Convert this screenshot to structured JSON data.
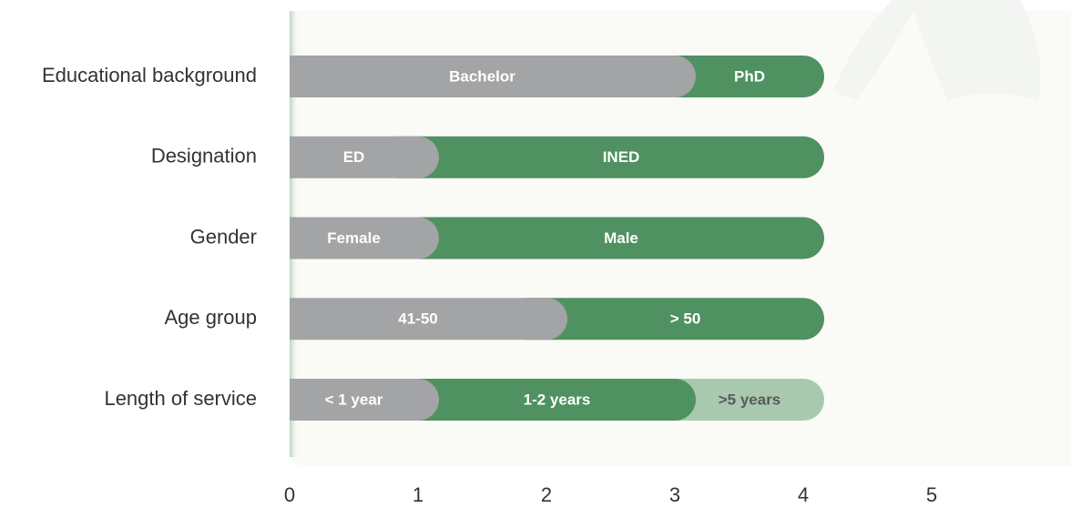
{
  "chart_data": {
    "type": "stacked-bar",
    "categories": [
      "Educational background",
      "Designation",
      "Gender",
      "Age group",
      "Length of service"
    ],
    "segments": [
      [
        {
          "label": "Bachelor",
          "value": 3,
          "color": "#a3a4a6",
          "label_color": "#ffffff"
        },
        {
          "label": "PhD",
          "value": 1,
          "color": "#4f9160",
          "label_color": "#ffffff"
        }
      ],
      [
        {
          "label": "ED",
          "value": 1,
          "color": "#a3a4a6",
          "label_color": "#ffffff"
        },
        {
          "label": "INED",
          "value": 3,
          "color": "#4f9160",
          "label_color": "#ffffff"
        }
      ],
      [
        {
          "label": "Female",
          "value": 1,
          "color": "#a3a4a6",
          "label_color": "#ffffff"
        },
        {
          "label": "Male",
          "value": 3,
          "color": "#4f9160",
          "label_color": "#ffffff"
        }
      ],
      [
        {
          "label": "41-50",
          "value": 2,
          "color": "#a3a4a6",
          "label_color": "#ffffff"
        },
        {
          "label": "> 50",
          "value": 2,
          "color": "#4f9160",
          "label_color": "#ffffff"
        }
      ],
      [
        {
          "label": "< 1 year",
          "value": 1,
          "color": "#a3a4a6",
          "label_color": "#ffffff"
        },
        {
          "label": "1-2 years",
          "value": 2,
          "color": "#4f9160",
          "label_color": "#ffffff"
        },
        {
          "label": ">5 years",
          "value": 1,
          "color": "#a9c9ae",
          "label_color": "#58595b"
        }
      ]
    ],
    "xlim": [
      0,
      6
    ],
    "xticks": [
      0,
      1,
      2,
      3,
      4,
      5
    ]
  }
}
